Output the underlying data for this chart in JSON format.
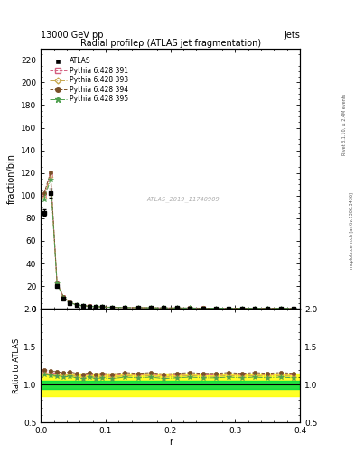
{
  "title": "Radial profileρ (ATLAS jet fragmentation)",
  "header_left": "13000 GeV pp",
  "header_right": "Jets",
  "ylabel_main": "fraction/bin",
  "ylabel_ratio": "Ratio to ATLAS",
  "xlabel": "r",
  "watermark": "ATLAS_2019_I1740909",
  "right_label1": "mcplots.cern.ch [arXiv:1306.3436]",
  "right_label2": "Rivet 3.1.10, ≥ 2.4M events",
  "ylim_main": [
    0,
    230
  ],
  "ylim_ratio": [
    0.5,
    2.0
  ],
  "xlim": [
    0,
    0.4
  ],
  "yticks_main": [
    0,
    20,
    40,
    60,
    80,
    100,
    120,
    140,
    160,
    180,
    200,
    220
  ],
  "yticks_ratio": [
    0.5,
    1.0,
    1.5,
    2.0
  ],
  "xticks": [
    0,
    0.1,
    0.2,
    0.3,
    0.4
  ],
  "r_values": [
    0.005,
    0.015,
    0.025,
    0.035,
    0.045,
    0.055,
    0.065,
    0.075,
    0.085,
    0.095,
    0.11,
    0.13,
    0.15,
    0.17,
    0.19,
    0.21,
    0.23,
    0.25,
    0.27,
    0.29,
    0.31,
    0.33,
    0.35,
    0.37,
    0.39
  ],
  "atlas_values": [
    85,
    102,
    20,
    9,
    5,
    3,
    2.5,
    2,
    1.8,
    1.5,
    1.2,
    1.0,
    0.9,
    0.8,
    0.7,
    0.65,
    0.6,
    0.55,
    0.5,
    0.48,
    0.45,
    0.42,
    0.4,
    0.38,
    0.36
  ],
  "atlas_errors": [
    3,
    4,
    1,
    0.5,
    0.3,
    0.2,
    0.15,
    0.1,
    0.1,
    0.1,
    0.08,
    0.07,
    0.06,
    0.06,
    0.05,
    0.05,
    0.04,
    0.04,
    0.04,
    0.04,
    0.04,
    0.04,
    0.04,
    0.04,
    0.04
  ],
  "pythia_391_ratios": [
    1.18,
    1.16,
    1.15,
    1.14,
    1.15,
    1.13,
    1.12,
    1.14,
    1.12,
    1.13,
    1.12,
    1.14,
    1.13,
    1.14,
    1.12,
    1.13,
    1.14,
    1.13,
    1.13,
    1.14,
    1.13,
    1.14,
    1.13,
    1.14,
    1.13
  ],
  "pythia_393_ratios": [
    1.16,
    1.14,
    1.13,
    1.12,
    1.13,
    1.11,
    1.1,
    1.12,
    1.1,
    1.11,
    1.1,
    1.12,
    1.11,
    1.12,
    1.1,
    1.11,
    1.12,
    1.11,
    1.11,
    1.12,
    1.11,
    1.12,
    1.11,
    1.12,
    1.11
  ],
  "pythia_394_ratios": [
    1.2,
    1.18,
    1.17,
    1.16,
    1.17,
    1.15,
    1.14,
    1.16,
    1.14,
    1.15,
    1.14,
    1.16,
    1.15,
    1.16,
    1.14,
    1.15,
    1.16,
    1.15,
    1.15,
    1.16,
    1.15,
    1.16,
    1.15,
    1.16,
    1.15
  ],
  "pythia_395_ratios": [
    1.14,
    1.12,
    1.11,
    1.1,
    1.11,
    1.09,
    1.08,
    1.1,
    1.08,
    1.09,
    1.08,
    1.1,
    1.09,
    1.1,
    1.08,
    1.09,
    1.1,
    1.09,
    1.09,
    1.1,
    1.09,
    1.1,
    1.09,
    1.1,
    1.09
  ],
  "green_band_half": 0.05,
  "yellow_band_half": 0.15,
  "color_391": "#d46080",
  "color_393": "#c8a850",
  "color_394": "#7a5028",
  "color_395": "#50a050",
  "atlas_color": "#000000",
  "bg_color": "#ffffff",
  "legend_entries": [
    "ATLAS",
    "Pythia 6.428 391",
    "Pythia 6.428 393",
    "Pythia 6.428 394",
    "Pythia 6.428 395"
  ]
}
